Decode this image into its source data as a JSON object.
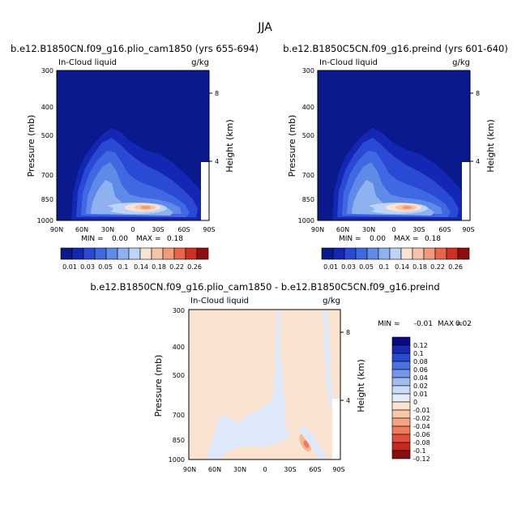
{
  "page_title": "JJA",
  "colors": {
    "scale_abs": [
      "#0a1a8c",
      "#1426b4",
      "#2a4ad6",
      "#3f68e2",
      "#5f8ae8",
      "#8eb2f0",
      "#bcd4f7",
      "#fbe3d2",
      "#f7c4a8",
      "#f29a7a",
      "#e8654a",
      "#cf3020",
      "#8c0e0e"
    ],
    "scale_diff": [
      "#0a0a7a",
      "#1a2ab0",
      "#2a4ad0",
      "#4c72e0",
      "#7496e8",
      "#a0bcf0",
      "#c8dcf6",
      "#e4eefb",
      "#fbe3d2",
      "#f8c8ab",
      "#f4a585",
      "#ee7d5e",
      "#e2503a",
      "#c42a1e",
      "#8a0e0e"
    ],
    "field_bg_abs": "#0a1a8c",
    "field_bg_diff": "#fbe3d2"
  },
  "panels": [
    {
      "title": "b.e12.B1850CN.f09_g16.plio_cam1850 (yrs 655-694)",
      "left_label": "In-Cloud liquid",
      "right_label": "g/kg",
      "ylabel": "Pressure (mb)",
      "y2label": "Height (km)",
      "yticks": [
        "300",
        "400",
        "500",
        "700",
        "850",
        "1000"
      ],
      "y2ticks": [
        "8",
        "4"
      ],
      "xticks": [
        "90N",
        "60N",
        "30N",
        "0",
        "30S",
        "60S",
        "90S"
      ],
      "min_text": "MIN =",
      "min_value": "0.00",
      "max_text": "MAX =",
      "max_value": "0.18",
      "colorbar_labels": [
        "0.01",
        "0.03",
        "0.05",
        "0.1",
        "0.14",
        "0.18",
        "0.22",
        "0.26"
      ]
    },
    {
      "title": "b.e12.B1850C5CN.f09_g16.preind (yrs 601-640)",
      "left_label": "In-Cloud liquid",
      "right_label": "g/kg",
      "ylabel": "Pressure (mb)",
      "y2label": "Height (km)",
      "yticks": [
        "300",
        "400",
        "500",
        "700",
        "850",
        "1000"
      ],
      "y2ticks": [
        "8",
        "4"
      ],
      "xticks": [
        "90N",
        "60N",
        "30N",
        "0",
        "30S",
        "60S",
        "90S"
      ],
      "min_text": "MIN =",
      "min_value": "0.00",
      "max_text": "MAX =",
      "max_value": "0.18",
      "colorbar_labels": [
        "0.01",
        "0.03",
        "0.05",
        "0.1",
        "0.14",
        "0.18",
        "0.22",
        "0.26"
      ]
    },
    {
      "title": "b.e12.B1850CN.f09_g16.plio_cam1850 - b.e12.B1850C5CN.f09_g16.preind",
      "left_label": "In-Cloud liquid",
      "right_label": "g/kg",
      "ylabel": "Pressure (mb)",
      "y2label": "Height (km)",
      "yticks": [
        "300",
        "400",
        "500",
        "700",
        "850",
        "1000"
      ],
      "y2ticks": [
        "8",
        "4"
      ],
      "xticks": [
        "90N",
        "60N",
        "30N",
        "0",
        "30S",
        "60S",
        "90S"
      ],
      "min_text": "MIN =",
      "min_value": "-0.01",
      "max_text": "MAX =",
      "max_value": "0.02",
      "colorbar_labels": [
        "0.12",
        "0.1",
        "0.08",
        "0.06",
        "0.04",
        "0.02",
        "0.01",
        "0",
        "-0.01",
        "-0.02",
        "-0.04",
        "-0.06",
        "-0.08",
        "-0.1",
        "-0.12"
      ]
    }
  ],
  "chart_data": [
    {
      "type": "heatmap",
      "title": "b.e12.B1850CN.f09_g16.plio_cam1850 (yrs 655-694)",
      "variable": "In-Cloud liquid",
      "units": "g/kg",
      "x": [
        "90N",
        "60N",
        "30N",
        "0",
        "30S",
        "60S",
        "90S"
      ],
      "ylabel": "Pressure (mb)",
      "ylim": [
        1000,
        300
      ],
      "min": 0.0,
      "max": 0.18,
      "levels": [
        0.01,
        0.03,
        0.05,
        0.1,
        0.14,
        0.18,
        0.22,
        0.26
      ]
    },
    {
      "type": "heatmap",
      "title": "b.e12.B1850C5CN.f09_g16.preind (yrs 601-640)",
      "variable": "In-Cloud liquid",
      "units": "g/kg",
      "x": [
        "90N",
        "60N",
        "30N",
        "0",
        "30S",
        "60S",
        "90S"
      ],
      "ylabel": "Pressure (mb)",
      "ylim": [
        1000,
        300
      ],
      "min": 0.0,
      "max": 0.18,
      "levels": [
        0.01,
        0.03,
        0.05,
        0.1,
        0.14,
        0.18,
        0.22,
        0.26
      ]
    },
    {
      "type": "heatmap",
      "title": "b.e12.B1850CN.f09_g16.plio_cam1850 - b.e12.B1850C5CN.f09_g16.preind",
      "variable": "In-Cloud liquid",
      "units": "g/kg",
      "x": [
        "90N",
        "60N",
        "30N",
        "0",
        "30S",
        "60S",
        "90S"
      ],
      "ylabel": "Pressure (mb)",
      "ylim": [
        1000,
        300
      ],
      "min": -0.01,
      "max": 0.02,
      "levels": [
        0.12,
        0.1,
        0.08,
        0.06,
        0.04,
        0.02,
        0.01,
        0,
        -0.01,
        -0.02,
        -0.04,
        -0.06,
        -0.08,
        -0.1,
        -0.12
      ]
    }
  ]
}
